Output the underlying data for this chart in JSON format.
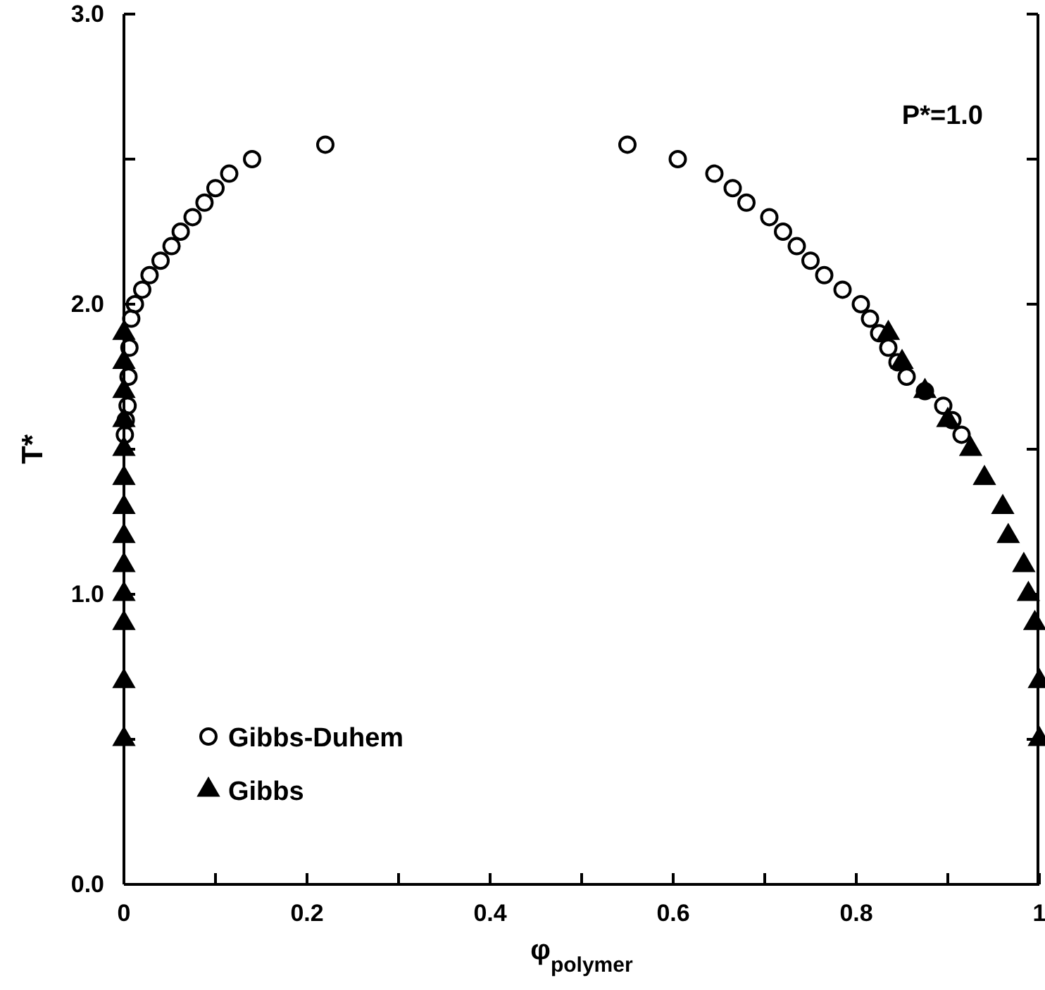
{
  "chart_data": {
    "type": "scatter",
    "xlabel": "φ$_{polymer}$",
    "ylabel": "T*",
    "annotations": [
      "P*=1.0"
    ],
    "xlim": [
      0,
      1
    ],
    "ylim": [
      0,
      3
    ],
    "xticks": [
      {
        "value": 0,
        "label": "0"
      },
      {
        "value": 0.1,
        "label": null
      },
      {
        "value": 0.2,
        "label": "0.2"
      },
      {
        "value": 0.3,
        "label": null
      },
      {
        "value": 0.4,
        "label": "0.4"
      },
      {
        "value": 0.5,
        "label": null
      },
      {
        "value": 0.6,
        "label": "0.6"
      },
      {
        "value": 0.7,
        "label": null
      },
      {
        "value": 0.8,
        "label": "0.8"
      },
      {
        "value": 0.9,
        "label": null
      },
      {
        "value": 1,
        "label": "1"
      }
    ],
    "yticks": [
      {
        "value": 0,
        "label": "0.0"
      },
      {
        "value": 0.5,
        "label": null
      },
      {
        "value": 1,
        "label": "1.0"
      },
      {
        "value": 1.5,
        "label": null
      },
      {
        "value": 2,
        "label": "2.0"
      },
      {
        "value": 2.5,
        "label": null
      },
      {
        "value": 3,
        "label": "3.0"
      }
    ],
    "legend": "bottom left",
    "grid": false,
    "series": [
      {
        "name": "Gibbs-Duhem",
        "color": "#000000",
        "marker": "circle",
        "x": [
          0.001,
          0.002,
          0.004,
          0.005,
          0.006,
          0.008,
          0.012,
          0.02,
          0.028,
          0.04,
          0.052,
          0.062,
          0.075,
          0.088,
          0.1,
          0.115,
          0.14,
          0.22,
          0.55,
          0.605,
          0.645,
          0.665,
          0.68,
          0.705,
          0.72,
          0.735,
          0.75,
          0.765,
          0.785,
          0.805,
          0.815,
          0.825,
          0.835,
          0.845,
          0.855,
          0.875,
          0.895,
          0.905,
          0.915
        ],
        "values": [
          1.55,
          1.6,
          1.65,
          1.75,
          1.85,
          1.95,
          2.0,
          2.05,
          2.1,
          2.15,
          2.2,
          2.25,
          2.3,
          2.35,
          2.4,
          2.45,
          2.5,
          2.55,
          2.55,
          2.5,
          2.45,
          2.4,
          2.35,
          2.3,
          2.25,
          2.2,
          2.15,
          2.1,
          2.05,
          2.0,
          1.95,
          1.9,
          1.85,
          1.8,
          1.75,
          1.7,
          1.65,
          1.6,
          1.55
        ]
      },
      {
        "name": "Gibbs",
        "color": "#000000",
        "marker": "triangle",
        "x": [
          0,
          0,
          0,
          0,
          0,
          0,
          0,
          0,
          0,
          0,
          0,
          0,
          0,
          0.835,
          0.85,
          0.875,
          0.9,
          0.925,
          0.94,
          0.96,
          0.966,
          0.983,
          0.988,
          0.995,
          1,
          1
        ],
        "values": [
          0.5,
          0.7,
          0.9,
          1.0,
          1.1,
          1.2,
          1.3,
          1.4,
          1.5,
          1.6,
          1.7,
          1.8,
          1.9,
          1.9,
          1.8,
          1.7,
          1.6,
          1.5,
          1.4,
          1.3,
          1.2,
          1.1,
          1.0,
          0.9,
          0.7,
          0.5
        ]
      }
    ]
  }
}
